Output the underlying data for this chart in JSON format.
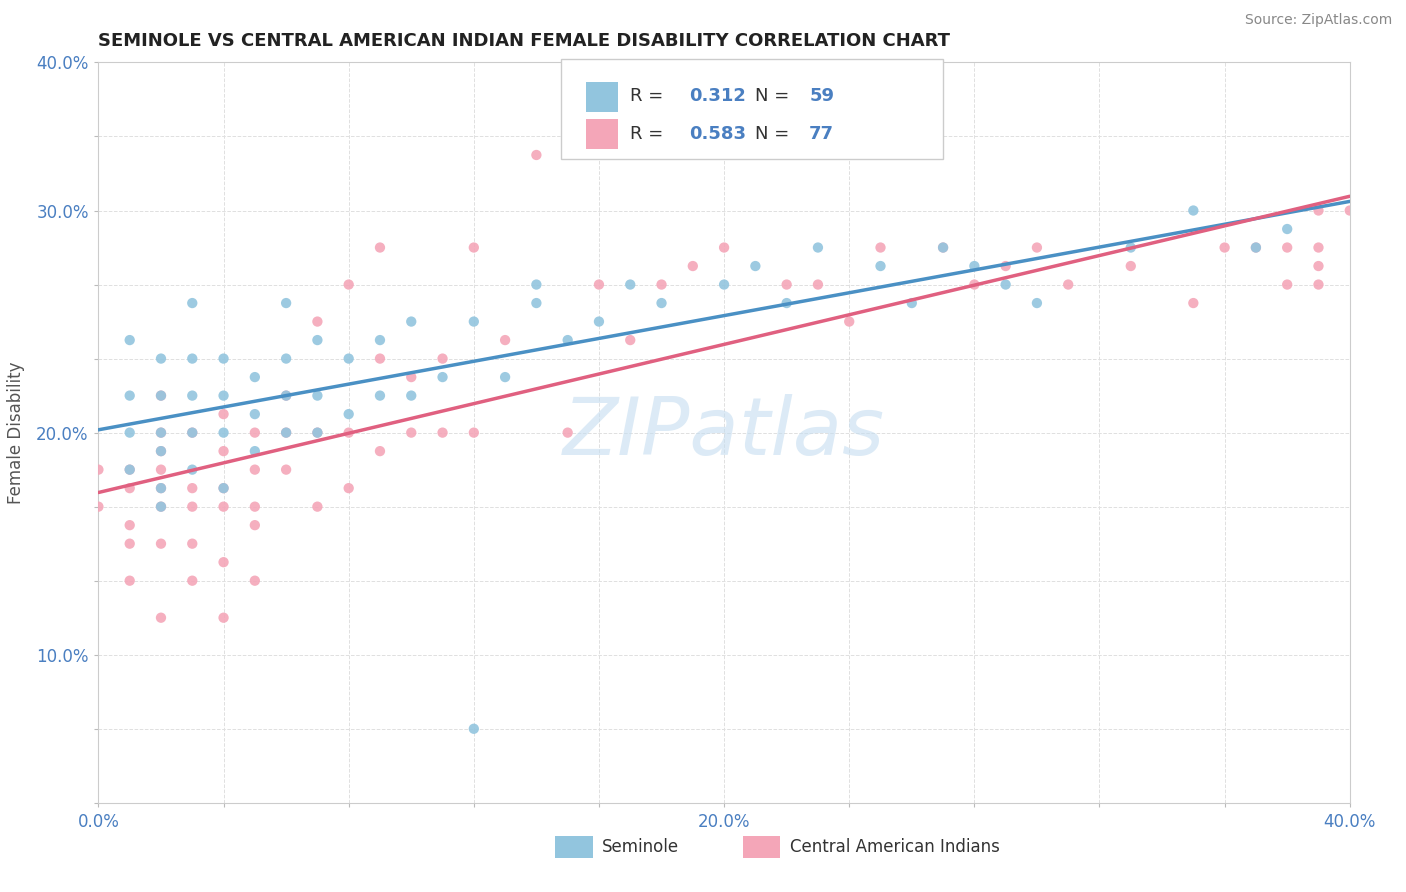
{
  "title": "SEMINOLE VS CENTRAL AMERICAN INDIAN FEMALE DISABILITY CORRELATION CHART",
  "source": "Source: ZipAtlas.com",
  "ylabel": "Female Disability",
  "xlim": [
    0.0,
    0.4
  ],
  "ylim": [
    0.0,
    0.4
  ],
  "xticks": [
    0.0,
    0.04,
    0.08,
    0.12,
    0.16,
    0.2,
    0.24,
    0.28,
    0.32,
    0.36,
    0.4
  ],
  "yticks": [
    0.0,
    0.04,
    0.08,
    0.12,
    0.16,
    0.2,
    0.24,
    0.28,
    0.32,
    0.36,
    0.4
  ],
  "xticklabels": [
    "0.0%",
    "",
    "",
    "",
    "",
    "20.0%",
    "",
    "",
    "",
    "",
    "40.0%"
  ],
  "yticklabels": [
    "",
    "",
    "10.0%",
    "",
    "",
    "20.0%",
    "",
    "",
    "30.0%",
    "",
    "40.0%"
  ],
  "seminole_R": "0.312",
  "seminole_N": "59",
  "central_R": "0.583",
  "central_N": "77",
  "seminole_color": "#92c5de",
  "central_color": "#f4a6b8",
  "seminole_line_color": "#4a90c4",
  "central_line_color": "#e06080",
  "legend_text_color": "#4a7fc1",
  "background_color": "#ffffff",
  "grid_color": "#e0e0e0",
  "watermark": "ZIPatlas",
  "watermark_color": "#c5ddf0",
  "seminole_x": [
    0.01,
    0.01,
    0.01,
    0.02,
    0.02,
    0.02,
    0.02,
    0.02,
    0.03,
    0.03,
    0.03,
    0.03,
    0.04,
    0.04,
    0.04,
    0.04,
    0.05,
    0.05,
    0.05,
    0.06,
    0.06,
    0.06,
    0.06,
    0.07,
    0.07,
    0.07,
    0.08,
    0.08,
    0.09,
    0.09,
    0.1,
    0.1,
    0.11,
    0.12,
    0.13,
    0.14,
    0.14,
    0.15,
    0.16,
    0.17,
    0.18,
    0.2,
    0.21,
    0.22,
    0.23,
    0.25,
    0.26,
    0.27,
    0.28,
    0.29,
    0.3,
    0.33,
    0.35,
    0.37,
    0.38,
    0.02,
    0.03,
    0.12,
    0.01
  ],
  "seminole_y": [
    0.2,
    0.22,
    0.25,
    0.17,
    0.19,
    0.2,
    0.22,
    0.24,
    0.2,
    0.22,
    0.24,
    0.27,
    0.17,
    0.2,
    0.22,
    0.24,
    0.19,
    0.21,
    0.23,
    0.2,
    0.22,
    0.24,
    0.27,
    0.2,
    0.22,
    0.25,
    0.21,
    0.24,
    0.22,
    0.25,
    0.22,
    0.26,
    0.23,
    0.26,
    0.23,
    0.27,
    0.28,
    0.25,
    0.26,
    0.28,
    0.27,
    0.28,
    0.29,
    0.27,
    0.3,
    0.29,
    0.27,
    0.3,
    0.29,
    0.28,
    0.27,
    0.3,
    0.32,
    0.3,
    0.31,
    0.16,
    0.18,
    0.04,
    0.18
  ],
  "central_x": [
    0.0,
    0.0,
    0.01,
    0.01,
    0.01,
    0.01,
    0.01,
    0.02,
    0.02,
    0.02,
    0.02,
    0.02,
    0.02,
    0.02,
    0.02,
    0.03,
    0.03,
    0.03,
    0.03,
    0.03,
    0.04,
    0.04,
    0.04,
    0.04,
    0.04,
    0.04,
    0.05,
    0.05,
    0.05,
    0.05,
    0.05,
    0.06,
    0.06,
    0.06,
    0.07,
    0.07,
    0.07,
    0.08,
    0.08,
    0.08,
    0.09,
    0.09,
    0.09,
    0.1,
    0.1,
    0.11,
    0.11,
    0.12,
    0.12,
    0.13,
    0.14,
    0.15,
    0.16,
    0.17,
    0.18,
    0.19,
    0.2,
    0.22,
    0.23,
    0.24,
    0.25,
    0.27,
    0.28,
    0.29,
    0.3,
    0.31,
    0.33,
    0.35,
    0.36,
    0.37,
    0.38,
    0.38,
    0.39,
    0.39,
    0.39,
    0.39,
    0.4
  ],
  "central_y": [
    0.16,
    0.18,
    0.12,
    0.14,
    0.15,
    0.17,
    0.18,
    0.1,
    0.14,
    0.16,
    0.17,
    0.18,
    0.19,
    0.2,
    0.22,
    0.12,
    0.14,
    0.16,
    0.17,
    0.2,
    0.1,
    0.13,
    0.16,
    0.17,
    0.19,
    0.21,
    0.12,
    0.15,
    0.16,
    0.18,
    0.2,
    0.18,
    0.2,
    0.22,
    0.16,
    0.2,
    0.26,
    0.17,
    0.2,
    0.28,
    0.19,
    0.24,
    0.3,
    0.2,
    0.23,
    0.2,
    0.24,
    0.2,
    0.3,
    0.25,
    0.35,
    0.2,
    0.28,
    0.25,
    0.28,
    0.29,
    0.3,
    0.28,
    0.28,
    0.26,
    0.3,
    0.3,
    0.28,
    0.29,
    0.3,
    0.28,
    0.29,
    0.27,
    0.3,
    0.3,
    0.28,
    0.3,
    0.28,
    0.29,
    0.3,
    0.32,
    0.32
  ]
}
